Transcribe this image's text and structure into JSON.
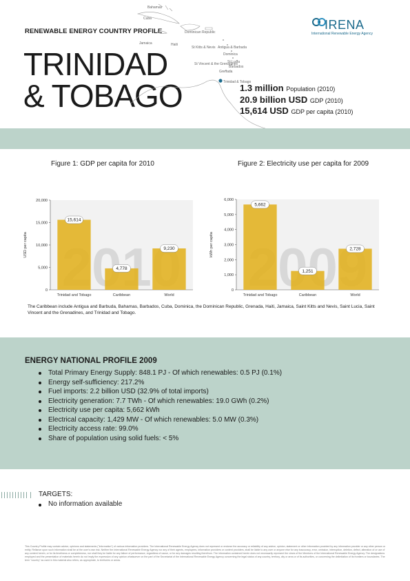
{
  "header": {
    "profile_label": "RENEWABLE ENERGY COUNTRY PROFILE",
    "country_line1": "TRINIDAD",
    "country_line2": "& TOBAGO",
    "logo_word": "IRENA",
    "logo_sub": "International Renewable Energy Agency"
  },
  "map_labels": [
    "Bahamas",
    "Cuba",
    "Dominican Republic",
    "Jamaica",
    "Haiti",
    "St Kitts & Nevis",
    "Antigua & Barbuda",
    "Dominica",
    "St Lucia",
    "Barbados",
    "Grenada",
    "St Vincent & the Grenadines",
    "Trinidad & Tobago"
  ],
  "stats": [
    {
      "value": "1.3 million",
      "label": "Population (2010)"
    },
    {
      "value": "20.9 billion USD",
      "label": "GDP (2010)"
    },
    {
      "value": "15,614 USD",
      "label": "GDP per capita (2010)"
    }
  ],
  "figure1_title": "Figure 1: GDP per capita for 2010",
  "figure2_title": "Figure 2: Electricity use per capita for 2009",
  "chart_data": [
    {
      "type": "bar",
      "title": "Figure 1: GDP per capita for 2010",
      "ylabel": "USD per capita",
      "categories": [
        "Trinidad and Tobago",
        "Caribbean",
        "World"
      ],
      "values": [
        15614,
        4778,
        9230
      ],
      "value_labels": [
        "15,614",
        "4,778",
        "9,230"
      ],
      "yticks": [
        "0",
        "5,000",
        "10,000",
        "15,000",
        "20,000"
      ],
      "ylim": [
        0,
        20000
      ],
      "watermark": "2010",
      "bar_color": "#e2b324"
    },
    {
      "type": "bar",
      "title": "Figure 2: Electricity use per capita for 2009",
      "ylabel": "kWh per capita",
      "categories": [
        "Trinidad and Tobago",
        "Caribbean",
        "World"
      ],
      "values": [
        5662,
        1251,
        2728
      ],
      "value_labels": [
        "5,662",
        "1,251",
        "2,728"
      ],
      "yticks": [
        "0",
        "1,000",
        "2,000",
        "3,000",
        "4,000",
        "5,000",
        "6,000"
      ],
      "ylim": [
        0,
        6000
      ],
      "watermark": "2009",
      "bar_color": "#e2b324"
    }
  ],
  "caribbean_note": "The Caribbean include Antigua and Barbuda, Bahamas, Barbados, Cuba, Dominica, the Dominican Republic, Grenada, Haiti, Jamaica, Saint Kitts and Nevis, Saint Lucia, Saint Vincent and the Grenadines, and Trinidad and Tobago.",
  "energy_profile": {
    "heading": "ENERGY NATIONAL PROFILE 2009",
    "items": [
      "Total Primary Energy Supply: 848.1 PJ - Of which renewables: 0.5 PJ (0.1%)",
      "Energy self-sufficiency: 217.2%",
      "Fuel imports: 2.2 billion USD (32.9% of total imports)",
      "Electricity generation: 7.7 TWh - Of which renewables: 19.0 GWh (0.2%)",
      "Electricity use per capita: 5,662 kWh",
      "Electrical capacity: 1,429 MW - Of which renewables: 5.0 MW (0.3%)",
      "Electricity access rate: 99.0%",
      "Share of population using solid fuels: < 5%"
    ]
  },
  "targets": {
    "heading": "TARGETS:",
    "item": "No information available"
  },
  "disclaimer": "This Country Profile may contain advice, opinions and statements (\"information\") of various information providers. The International Renewable Energy Agency does not represent or endorse the accuracy or reliability of any advice, opinion, statement or other information provided by any information provider or any other person or entity. Reliance upon such information shall be at the user's own risk. Neither the International Renewable Energy Agency nor any of their agents, employees, information providers or content providers, shall be liable to any user or anyone else for any inaccuracy, error, omission, interruption, deletion, defect, alteration of or use of any content herein, or for its timeliness or completeness, nor shall they be liable for any failure of performance, regardless of cause, or for any damages resulting therefrom. The information contained herein does not necessarily represent the views of the Members of the International Renewable Energy Agency. The designations employed and the presentation of materials herein do not imply the expression of any opinion whatsoever on the part of the Secretariat of the International Renewable Energy Agency concerning the legal status of any country, territory, city or area or of its authorities, or concerning the delimitation of its frontiers or boundaries. The term \"country\" as used in this material also refers, as appropriate, to territories or areas."
}
